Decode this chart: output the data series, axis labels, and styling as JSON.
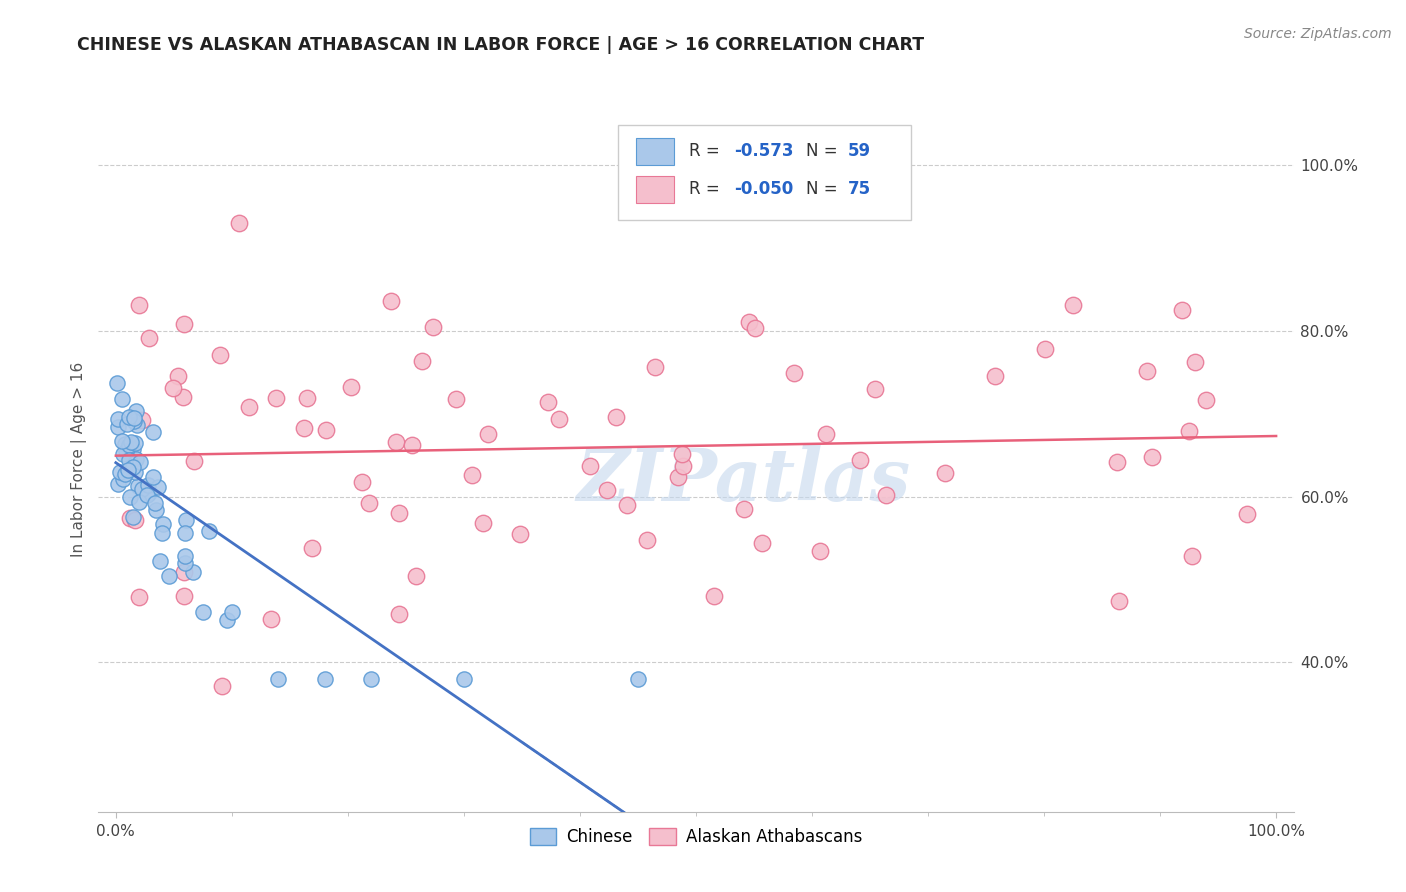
{
  "title": "CHINESE VS ALASKAN ATHABASCAN IN LABOR FORCE | AGE > 16 CORRELATION CHART",
  "source_text": "Source: ZipAtlas.com",
  "ylabel": "In Labor Force | Age > 16",
  "ylabel_right_ticks": [
    "40.0%",
    "60.0%",
    "80.0%",
    "100.0%"
  ],
  "ylabel_right_vals": [
    0.4,
    0.6,
    0.8,
    1.0
  ],
  "legend_r1_val": "-0.573",
  "legend_n1_val": "59",
  "legend_r2_val": "-0.050",
  "legend_n2_val": "75",
  "series1_name": "Chinese",
  "series2_name": "Alaskan Athabascans",
  "series1_color": "#aac8ea",
  "series2_color": "#f5bfcd",
  "series1_edge": "#5b9bd5",
  "series2_edge": "#e87896",
  "trend1_color": "#4472c4",
  "trend2_color": "#e8607a",
  "background_color": "#ffffff",
  "grid_color": "#cccccc",
  "watermark_color": "#c5d8ee",
  "watermark_alpha": 0.6,
  "xlim": [
    -0.015,
    1.015
  ],
  "ylim": [
    0.22,
    1.07
  ],
  "figwidth": 14.06,
  "figheight": 8.92,
  "dpi": 100
}
